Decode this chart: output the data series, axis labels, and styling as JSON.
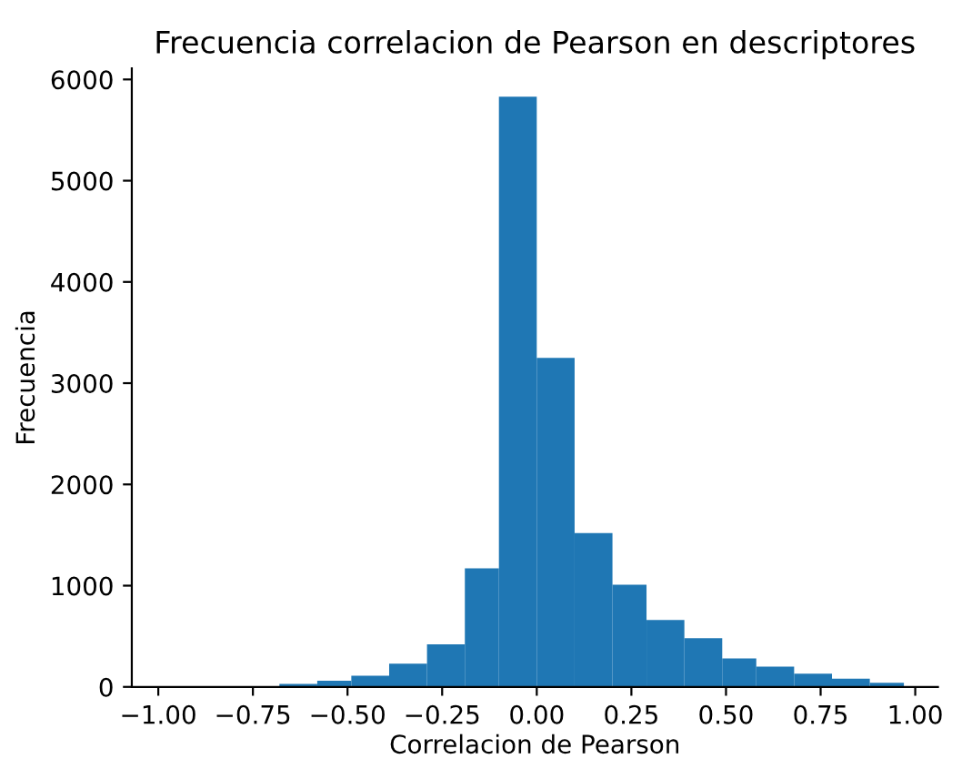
{
  "chart_data": {
    "type": "histogram",
    "title": "Frecuencia correlacion de Pearson en descriptores",
    "xlabel": "Correlacion de Pearson",
    "ylabel": "Frecuencia",
    "bins": [
      -0.68,
      -0.58,
      -0.49,
      -0.39,
      -0.29,
      -0.19,
      -0.1,
      0.0,
      0.1,
      0.2,
      0.29,
      0.39,
      0.49,
      0.58,
      0.68,
      0.78,
      0.88,
      0.97
    ],
    "values": [
      30,
      60,
      110,
      230,
      420,
      1170,
      5830,
      3250,
      1520,
      1010,
      660,
      480,
      280,
      200,
      130,
      80,
      40
    ],
    "color": "#1f77b4",
    "xlim": [
      -1.07,
      1.06
    ],
    "ylim": [
      0,
      6110
    ],
    "xticks": [
      {
        "value": -1.0,
        "label": "−1.00"
      },
      {
        "value": -0.75,
        "label": "−0.75"
      },
      {
        "value": -0.5,
        "label": "−0.50"
      },
      {
        "value": -0.25,
        "label": "−0.25"
      },
      {
        "value": 0.0,
        "label": "0.00"
      },
      {
        "value": 0.25,
        "label": "0.25"
      },
      {
        "value": 0.5,
        "label": "0.50"
      },
      {
        "value": 0.75,
        "label": "0.75"
      },
      {
        "value": 1.0,
        "label": "1.00"
      }
    ],
    "yticks": [
      0,
      1000,
      2000,
      3000,
      4000,
      5000,
      6000
    ],
    "grid": false
  }
}
